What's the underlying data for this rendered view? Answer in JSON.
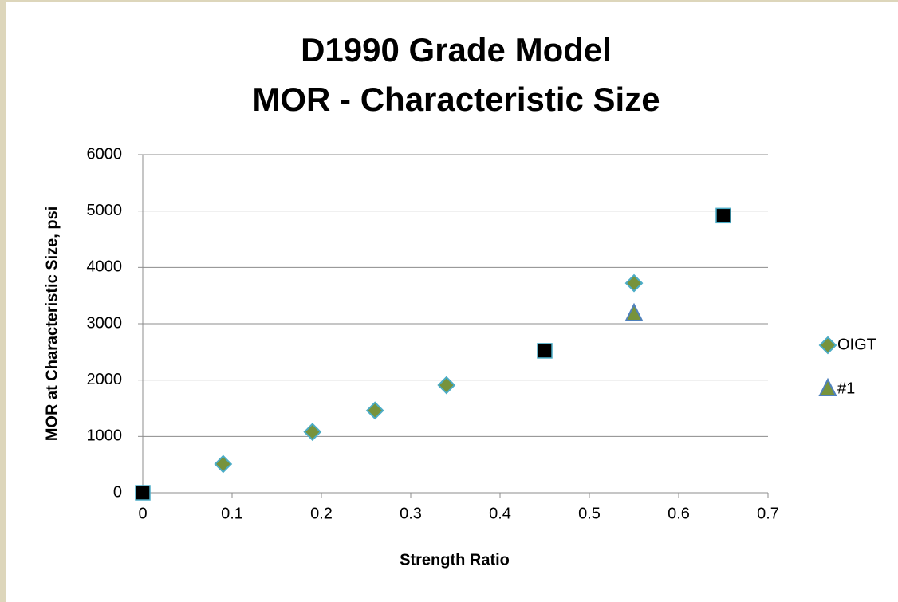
{
  "chart_data": {
    "type": "scatter",
    "title": [
      "D1990 Grade Model",
      "MOR - Characteristic Size"
    ],
    "x_label": "Strength Ratio",
    "y_label": "MOR at Characteristic Size, psi",
    "xlim": [
      0,
      0.7
    ],
    "xticks": [
      0,
      0.1,
      0.2,
      0.3,
      0.4,
      0.5,
      0.6,
      0.7
    ],
    "ylim": [
      0,
      6000
    ],
    "yticks": [
      0,
      1000,
      2000,
      3000,
      4000,
      5000,
      6000
    ],
    "grid": true,
    "legend": "right",
    "series": [
      {
        "name": "OIGT",
        "marker": "diamond",
        "color": "#77933c",
        "x": [
          0.09,
          0.19,
          0.26,
          0.34,
          0.55
        ],
        "values": [
          510,
          1080,
          1460,
          1910,
          3720
        ]
      },
      {
        "name": "#1",
        "marker": "triangle",
        "color": "#77933c",
        "x": [
          0.55
        ],
        "values": [
          3170
        ]
      },
      {
        "marker": "square",
        "color": "#000000",
        "x": [
          0,
          0.45,
          0.65
        ],
        "values": [
          0,
          2520,
          4920
        ]
      }
    ]
  }
}
